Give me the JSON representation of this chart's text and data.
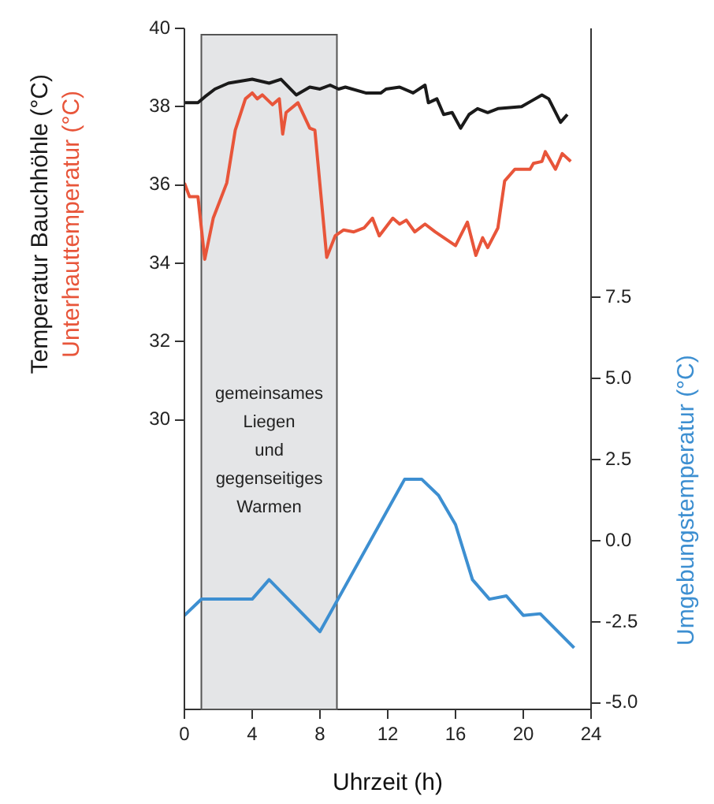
{
  "chart_data": {
    "type": "line",
    "xlabel": "Uhrzeit (h)",
    "xlim": [
      0,
      24
    ],
    "xticks": [
      0,
      4,
      8,
      12,
      16,
      20,
      24
    ],
    "ylim": [
      22.6,
      40
    ],
    "yticks": [
      30,
      32,
      34,
      36,
      38,
      40
    ],
    "y2lim": [
      -5.2,
      15.8
    ],
    "y2ticks": [
      {
        "value": -5,
        "label": "-5.0"
      },
      -2.5,
      {
        "value": 0,
        "label": "0.0"
      },
      2.5,
      {
        "value": 5,
        "label": "5.0"
      },
      7.5
    ],
    "series": [
      {
        "name": "Temperatur Bauchhöhle (°C)",
        "color": "#1a1a1a",
        "axis": "y",
        "x": [
          0,
          0.8,
          1.2,
          1.8,
          2.6,
          4,
          5,
          5.7,
          6.6,
          7.4,
          8,
          8.6,
          9.1,
          9.5,
          10.7,
          11.6,
          11.9,
          12.7,
          13.5,
          14.2,
          14.4,
          14.9,
          15.3,
          15.8,
          16.3,
          16.8,
          17.3,
          17.9,
          18.5,
          19.9,
          20.5,
          21.1,
          21.5,
          22.2,
          22.6
        ],
        "values": [
          38.1,
          38.1,
          38.25,
          38.45,
          38.6,
          38.7,
          38.6,
          38.7,
          38.3,
          38.5,
          38.45,
          38.55,
          38.45,
          38.5,
          38.35,
          38.35,
          38.45,
          38.5,
          38.35,
          38.55,
          38.1,
          38.2,
          37.8,
          37.85,
          37.45,
          37.8,
          37.95,
          37.85,
          37.95,
          38.0,
          38.15,
          38.3,
          38.2,
          37.6,
          37.8
        ]
      },
      {
        "name": "Unterhauttemperatur (°C)",
        "color": "#e8553a",
        "axis": "y",
        "x": [
          0,
          0.3,
          0.8,
          1.2,
          1.7,
          2.5,
          3,
          3.6,
          4,
          4.3,
          4.6,
          5.2,
          5.6,
          5.8,
          6,
          6.7,
          7.4,
          7.7,
          8.4,
          8.9,
          9.4,
          10,
          10.6,
          11.1,
          11.5,
          12.3,
          12.7,
          13.1,
          13.6,
          14.2,
          14.8,
          16,
          16.7,
          17.2,
          17.6,
          17.9,
          18.5,
          18.9,
          19.5,
          20.4,
          20.6,
          21.1,
          21.3,
          21.9,
          22.3,
          22.8
        ],
        "values": [
          36.05,
          35.7,
          35.7,
          34.1,
          35.15,
          36.05,
          37.4,
          38.2,
          38.35,
          38.2,
          38.3,
          38.05,
          38.2,
          37.3,
          37.85,
          38.1,
          37.45,
          37.4,
          34.15,
          34.7,
          34.85,
          34.8,
          34.9,
          35.15,
          34.7,
          35.15,
          35.0,
          35.1,
          34.8,
          35.0,
          34.8,
          34.45,
          35.05,
          34.2,
          34.65,
          34.4,
          34.9,
          36.1,
          36.4,
          36.4,
          36.55,
          36.6,
          36.85,
          36.4,
          36.8,
          36.6
        ]
      },
      {
        "name": "Umgebungstemperatur (°C)",
        "color": "#3d8fd1",
        "axis": "y2",
        "x": [
          0,
          1,
          4,
          5,
          8,
          13,
          14,
          15,
          16,
          17,
          18,
          19,
          20,
          21,
          23
        ],
        "values": [
          -2.3,
          -1.8,
          -1.8,
          -1.2,
          -2.8,
          1.9,
          1.9,
          1.4,
          0.5,
          -1.2,
          -1.8,
          -1.7,
          -2.3,
          -2.25,
          -3.3
        ]
      }
    ],
    "bands": [
      {
        "axis": "x",
        "from": 1,
        "to": 9,
        "label": "gemeinsames Liegen und gegenseitiges Warmen",
        "color": "#e4e5e7"
      }
    ]
  }
}
